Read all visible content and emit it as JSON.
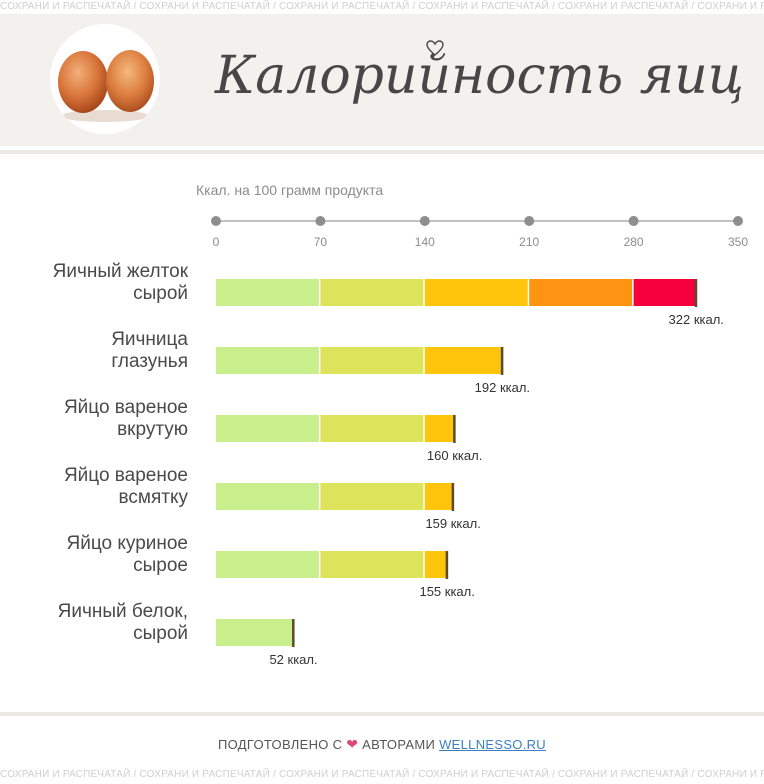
{
  "watermark_text": "СОХРАНИ И РАСПЕЧАТАЙ",
  "title": "Калорийность яиц",
  "chart_data": {
    "type": "bar",
    "orientation": "horizontal",
    "xlabel": "Ккал. на 100 грамм продукта",
    "xlim": [
      0,
      350
    ],
    "x_ticks": [
      0,
      70,
      140,
      210,
      280,
      350
    ],
    "categories": [
      "Яичный желток сырой",
      "Яичница глазунья",
      "Яйцо вареное вкрутую",
      "Яйцо вареное всмятку",
      "Яйцо куриное сырое",
      "Яичный белок, сырой"
    ],
    "category_lines": [
      [
        "Яичный желток",
        "сырой"
      ],
      [
        "Яичница",
        "глазунья"
      ],
      [
        "Яйцо вареное",
        "вкрутую"
      ],
      [
        "Яйцо вареное",
        "всмятку"
      ],
      [
        "Яйцо куриное",
        "сырое"
      ],
      [
        "Яичный белок,",
        "сырой"
      ]
    ],
    "values": [
      322,
      192,
      160,
      159,
      155,
      52
    ],
    "value_labels": [
      "322 ккал.",
      "192 ккал.",
      "160 ккал.",
      "159 ккал.",
      "155 ккал.",
      "52 ккал."
    ],
    "band_colors": [
      "#c8ef8c",
      "#dde35a",
      "#ffc40c",
      "#ff9312",
      "#f5003c"
    ],
    "band_size": 70
  },
  "footer": {
    "prefix": "ПОДГОТОВЛЕНО С",
    "heart": "❤",
    "middle": "АВТОРАМИ",
    "site": "WELLNESSO.RU"
  }
}
